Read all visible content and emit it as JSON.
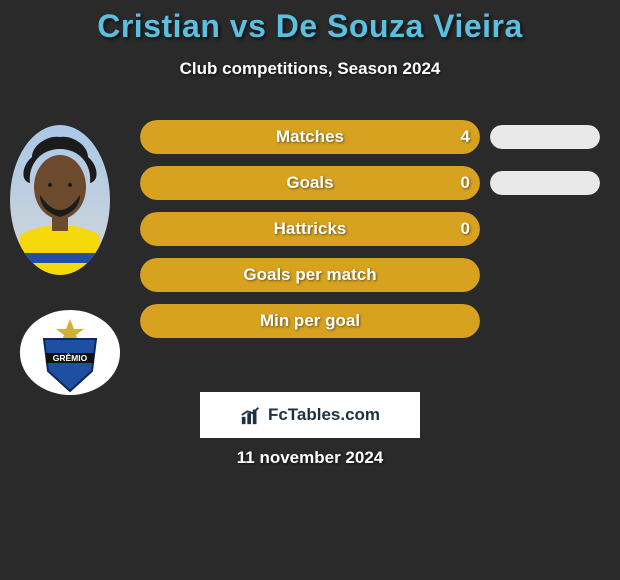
{
  "title_color": "#5abfe0",
  "background_color": "#2a2a2a",
  "title": "Cristian vs De Souza Vieira",
  "subtitle": "Club competitions, Season 2024",
  "date": "11 november 2024",
  "footer_brand": "FcTables.com",
  "left_bar": {
    "track_width": 340,
    "height": 34,
    "border_radius": 17,
    "fill_color": "#d6a21f",
    "label_fontsize": 17,
    "value_fontsize": 17,
    "text_color": "#ffffff"
  },
  "right_bar": {
    "track_width": 110,
    "height": 24,
    "border_radius": 12,
    "fill_color": "#e9e9e9"
  },
  "stats": [
    {
      "label": "Matches",
      "left_value": "4",
      "left_fill_pct": 100,
      "right_fill_pct": 100
    },
    {
      "label": "Goals",
      "left_value": "0",
      "left_fill_pct": 100,
      "right_fill_pct": 100
    },
    {
      "label": "Hattricks",
      "left_value": "0",
      "left_fill_pct": 100,
      "right_fill_pct": 0
    },
    {
      "label": "Goals per match",
      "left_value": "",
      "left_fill_pct": 100,
      "right_fill_pct": 0
    },
    {
      "label": "Min per goal",
      "left_value": "",
      "left_fill_pct": 100,
      "right_fill_pct": 0
    }
  ],
  "player_portrait": {
    "skin": "#6b4a2e",
    "hair": "#1b1b1b",
    "jersey": "#f5d90a",
    "bg_top": "#a9c8e8",
    "bg_bottom": "#d6d6d6"
  },
  "club_badge": {
    "name": "GRÊMIO",
    "shield_fill": "#1f4fa0",
    "shield_stroke": "#0a2a5a",
    "band_color": "#111111",
    "star_color": "#d4af37",
    "text_color": "#ffffff"
  },
  "footer_badge": {
    "bg": "#ffffff",
    "text_color": "#1e3142"
  }
}
